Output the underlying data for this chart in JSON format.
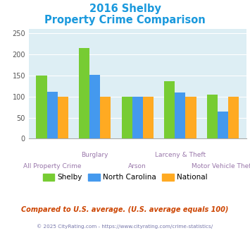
{
  "title_line1": "2016 Shelby",
  "title_line2": "Property Crime Comparison",
  "title_color": "#1a99dd",
  "groups": [
    "All Property Crime",
    "Burglary",
    "Arson",
    "Larceny & Theft",
    "Motor Vehicle Theft"
  ],
  "shelby": [
    150,
    215,
    100,
    137,
    105
  ],
  "north_carolina": [
    112,
    152,
    100,
    109,
    65
  ],
  "national": [
    100,
    100,
    100,
    100,
    100
  ],
  "shelby_color": "#77cc33",
  "north_carolina_color": "#4499ee",
  "national_color": "#ffaa22",
  "ylim": [
    0,
    260
  ],
  "yticks": [
    0,
    50,
    100,
    150,
    200,
    250
  ],
  "bar_width": 0.25,
  "bg_color": "#ddeef4",
  "xlabel_top": [
    "Burglary",
    "Larceny & Theft"
  ],
  "xlabel_top_xpos": [
    1,
    3
  ],
  "xlabel_bot": [
    "All Property Crime",
    "Arson",
    "Motor Vehicle Theft"
  ],
  "xlabel_bot_xpos": [
    0,
    2,
    4
  ],
  "xlabel_color": "#9977aa",
  "legend_labels": [
    "Shelby",
    "North Carolina",
    "National"
  ],
  "footnote1": "Compared to U.S. average. (U.S. average equals 100)",
  "footnote2": "© 2025 CityRating.com - https://www.cityrating.com/crime-statistics/",
  "footnote1_color": "#cc4400",
  "footnote2_color": "#7777aa",
  "grid_color": "#ffffff",
  "spine_color": "#aaaaaa"
}
